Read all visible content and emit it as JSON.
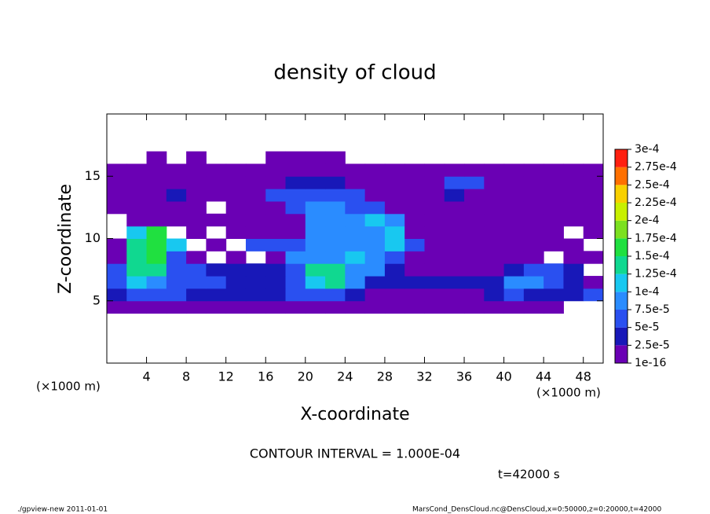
{
  "chart_data": {
    "type": "heatmap",
    "title": "density of cloud",
    "xlabel": "X-coordinate",
    "ylabel": "Z-coordinate",
    "xunit": "(×1000 m)",
    "xlim": [
      0,
      50
    ],
    "ylim": [
      0,
      20
    ],
    "xticks": [
      4,
      8,
      12,
      16,
      20,
      24,
      28,
      32,
      36,
      40,
      44,
      48
    ],
    "yticks": [
      5,
      10,
      15
    ],
    "x_edges": [
      0,
      2,
      4,
      6,
      8,
      10,
      12,
      14,
      16,
      18,
      20,
      22,
      24,
      26,
      28,
      30,
      32,
      34,
      36,
      38,
      40,
      42,
      44,
      46,
      48,
      50
    ],
    "z_edges": [
      4,
      5,
      6,
      7,
      8,
      9,
      10,
      11,
      12,
      13,
      14,
      15,
      16,
      17
    ],
    "values": [
      [
        1e-05,
        1e-05,
        1e-05,
        1e-05,
        1e-05,
        1e-05,
        1e-05,
        1e-05,
        1e-05,
        1e-05,
        1e-05,
        1e-05,
        1e-05,
        1e-05,
        1e-05,
        1e-05,
        1e-05,
        1e-05,
        1e-05,
        1e-05,
        1e-05,
        1e-05,
        1e-05,
        null,
        null
      ],
      [
        3e-05,
        6e-05,
        6e-05,
        6e-05,
        3e-05,
        3e-05,
        3e-05,
        3e-05,
        3e-05,
        6e-05,
        6e-05,
        6e-05,
        3e-05,
        1e-05,
        1e-05,
        1e-05,
        1e-05,
        1e-05,
        1e-05,
        3e-05,
        6e-05,
        3e-05,
        3e-05,
        3e-05,
        6e-05
      ],
      [
        6e-05,
        0.00011,
        8e-05,
        6e-05,
        6e-05,
        6e-05,
        3e-05,
        3e-05,
        3e-05,
        6e-05,
        0.00011,
        0.00013,
        8e-05,
        3e-05,
        3e-05,
        3e-05,
        3e-05,
        3e-05,
        3e-05,
        3e-05,
        8e-05,
        8e-05,
        6e-05,
        3e-05,
        1e-05
      ],
      [
        6e-05,
        0.00013,
        0.00013,
        6e-05,
        6e-05,
        3e-05,
        3e-05,
        3e-05,
        3e-05,
        6e-05,
        0.00013,
        0.00013,
        8e-05,
        8e-05,
        3e-05,
        1e-05,
        1e-05,
        1e-05,
        1e-05,
        1e-05,
        3e-05,
        6e-05,
        6e-05,
        3e-05,
        null
      ],
      [
        1e-05,
        0.00013,
        0.00016,
        6e-05,
        1e-05,
        null,
        1e-05,
        null,
        1e-05,
        8e-05,
        8e-05,
        8e-05,
        0.00011,
        8e-05,
        6e-05,
        1e-05,
        1e-05,
        1e-05,
        1e-05,
        1e-05,
        1e-05,
        1e-05,
        null,
        1e-05,
        1e-05
      ],
      [
        1e-05,
        0.00013,
        0.00016,
        0.00011,
        null,
        1e-05,
        null,
        6e-05,
        6e-05,
        6e-05,
        8e-05,
        8e-05,
        8e-05,
        8e-05,
        0.00011,
        6e-05,
        1e-05,
        1e-05,
        1e-05,
        1e-05,
        1e-05,
        1e-05,
        1e-05,
        1e-05,
        null
      ],
      [
        null,
        0.00011,
        0.00016,
        null,
        1e-05,
        null,
        1e-05,
        1e-05,
        1e-05,
        1e-05,
        8e-05,
        8e-05,
        8e-05,
        8e-05,
        0.00011,
        1e-05,
        1e-05,
        1e-05,
        1e-05,
        1e-05,
        1e-05,
        1e-05,
        1e-05,
        null,
        1e-05
      ],
      [
        null,
        1e-05,
        1e-05,
        1e-05,
        1e-05,
        1e-05,
        1e-05,
        1e-05,
        1e-05,
        1e-05,
        8e-05,
        8e-05,
        8e-05,
        0.00011,
        8e-05,
        1e-05,
        1e-05,
        1e-05,
        1e-05,
        1e-05,
        1e-05,
        1e-05,
        1e-05,
        1e-05,
        1e-05
      ],
      [
        1e-05,
        1e-05,
        1e-05,
        1e-05,
        1e-05,
        null,
        1e-05,
        1e-05,
        1e-05,
        6e-05,
        8e-05,
        8e-05,
        6e-05,
        6e-05,
        1e-05,
        1e-05,
        1e-05,
        1e-05,
        1e-05,
        1e-05,
        1e-05,
        1e-05,
        1e-05,
        1e-05,
        1e-05
      ],
      [
        1e-05,
        1e-05,
        1e-05,
        3e-05,
        1e-05,
        1e-05,
        1e-05,
        1e-05,
        6e-05,
        6e-05,
        6e-05,
        6e-05,
        6e-05,
        1e-05,
        1e-05,
        1e-05,
        1e-05,
        3e-05,
        1e-05,
        1e-05,
        1e-05,
        1e-05,
        1e-05,
        1e-05,
        1e-05
      ],
      [
        1e-05,
        1e-05,
        1e-05,
        1e-05,
        1e-05,
        1e-05,
        1e-05,
        1e-05,
        1e-05,
        3e-05,
        3e-05,
        3e-05,
        1e-05,
        1e-05,
        1e-05,
        1e-05,
        1e-05,
        6e-05,
        6e-05,
        1e-05,
        1e-05,
        1e-05,
        1e-05,
        1e-05,
        1e-05
      ],
      [
        1e-05,
        1e-05,
        1e-05,
        1e-05,
        1e-05,
        1e-05,
        1e-05,
        1e-05,
        1e-05,
        1e-05,
        1e-05,
        1e-05,
        1e-05,
        1e-05,
        1e-05,
        1e-05,
        1e-05,
        1e-05,
        1e-05,
        1e-05,
        1e-05,
        1e-05,
        1e-05,
        1e-05,
        1e-05
      ],
      [
        null,
        null,
        1e-05,
        null,
        1e-05,
        null,
        null,
        null,
        1e-05,
        1e-05,
        1e-05,
        1e-05,
        null,
        null,
        null,
        null,
        null,
        null,
        null,
        null,
        null,
        null,
        null,
        null,
        null
      ]
    ],
    "colorbar": {
      "levels": [
        {
          "value": 1e-16,
          "label": "1e-16"
        },
        {
          "value": 2.5e-05,
          "label": "2.5e-5"
        },
        {
          "value": 5e-05,
          "label": "5e-5"
        },
        {
          "value": 7.5e-05,
          "label": "7.5e-5"
        },
        {
          "value": 0.0001,
          "label": "1e-4"
        },
        {
          "value": 0.000125,
          "label": "1.25e-4"
        },
        {
          "value": 0.00015,
          "label": "1.5e-4"
        },
        {
          "value": 0.000175,
          "label": "1.75e-4"
        },
        {
          "value": 0.0002,
          "label": "2e-4"
        },
        {
          "value": 0.000225,
          "label": "2.25e-4"
        },
        {
          "value": 0.00025,
          "label": "2.5e-4"
        },
        {
          "value": 0.000275,
          "label": "2.75e-4"
        },
        {
          "value": 0.0003,
          "label": "3e-4"
        }
      ],
      "colors": [
        "#6a00b4",
        "#1818b8",
        "#2a50f0",
        "#2a8cff",
        "#18c8f0",
        "#10d890",
        "#20e040",
        "#7ce020",
        "#c8f000",
        "#f8d000",
        "#ff7000",
        "#ff2010",
        "#ff8080"
      ]
    },
    "contour_interval": "CONTOUR INTERVAL = 1.000E-04",
    "time": "t=42000 s",
    "footer_left": "./gpview-new   2011-01-01",
    "footer_right": "MarsCond_DensCloud.nc@DensCloud,x=0:50000,z=0:20000,t=42000"
  }
}
